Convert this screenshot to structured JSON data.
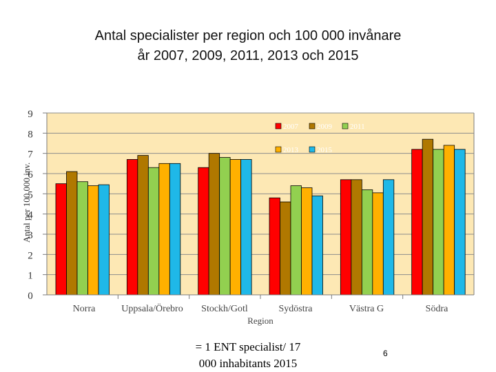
{
  "chart_data": {
    "type": "bar",
    "title_line1": "Antal specialister per region och 100 000 invånare",
    "title_line2": "år 2007, 2009, 2011, 2013 och 2015",
    "xlabel": "Region",
    "ylabel": "Antal per 100 000 inv.",
    "ylim": [
      0,
      9
    ],
    "yticks": [
      "0",
      "1",
      "2",
      "3",
      "4",
      "5",
      "6",
      "7",
      "8",
      "9"
    ],
    "grid": true,
    "legend_position": "top-right",
    "categories": [
      "Norra",
      "Uppsala/Örebro",
      "Stockh/Gotl",
      "Sydöstra",
      "Västra G",
      "Södra"
    ],
    "series": [
      {
        "name": "2007",
        "color": "#ff0000",
        "values": [
          5.5,
          6.7,
          6.3,
          4.8,
          5.7,
          7.2
        ]
      },
      {
        "name": "2009",
        "color": "#b07800",
        "values": [
          6.1,
          6.9,
          7.0,
          4.6,
          5.7,
          7.7
        ]
      },
      {
        "name": "2011",
        "color": "#92d050",
        "values": [
          5.6,
          6.3,
          6.8,
          5.4,
          5.2,
          7.2
        ]
      },
      {
        "name": "2013",
        "color": "#ffb000",
        "values": [
          5.4,
          6.5,
          6.7,
          5.3,
          5.05,
          7.4
        ]
      },
      {
        "name": "2015",
        "color": "#1fb8e8",
        "values": [
          5.45,
          6.5,
          6.7,
          4.9,
          5.7,
          7.2
        ]
      }
    ],
    "plot_background": "#fde8b4"
  },
  "footnote_line1": "= 1 ENT specialist/ 17",
  "footnote_line2": "000 inhabitants 2015",
  "page_number": "6"
}
